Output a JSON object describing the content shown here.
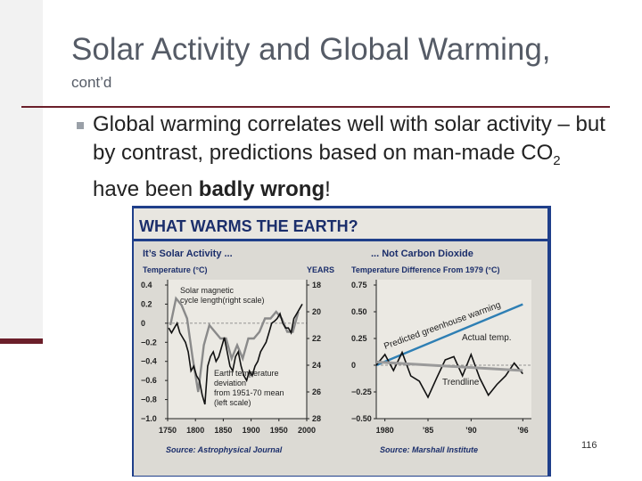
{
  "slide": {
    "title": "Solar Activity and Global Warming,",
    "subtitle": "cont’d",
    "bullet_pre": "Global warming correlates well with solar activity – but by contrast, predictions based on man-made CO",
    "bullet_sub": "2",
    "bullet_mid": " have been ",
    "bullet_bold": "badly wrong",
    "bullet_end": "!",
    "page_number": "116"
  },
  "figure": {
    "headline": "WHAT WARMS THE EARTH?"
  },
  "chart_data": [
    {
      "type": "line",
      "title": "It’s Solar Activity ...",
      "ylabel_left": "Temperature (°C)",
      "ylabel_right": "YEARS",
      "left_ticks": [
        "0.4",
        "0.2",
        "0",
        "−0.2",
        "−0.4",
        "−0.6",
        "−0.8",
        "−1.0"
      ],
      "right_ticks": [
        "18",
        "20",
        "22",
        "24",
        "26",
        "28"
      ],
      "x_ticks": [
        "1750",
        "1800",
        "1850",
        "1900",
        "1950",
        "2000"
      ],
      "xlim": [
        1750,
        2000
      ],
      "ylim_left": [
        -1.0,
        0.4
      ],
      "ylim_right": [
        18,
        28
      ],
      "annotations": [
        "Solar magnetic cycle length (right scale)",
        "Earth temperature deviation from 1951-70 mean (left scale)"
      ],
      "source": "Source: Astrophysical Journal",
      "series": [
        {
          "name": "Solar magnetic cycle length (right scale)",
          "color": "#8a8a8a",
          "x": [
            1755,
            1765,
            1775,
            1785,
            1795,
            1805,
            1815,
            1825,
            1835,
            1845,
            1855,
            1865,
            1875,
            1885,
            1895,
            1905,
            1915,
            1925,
            1935,
            1945,
            1955,
            1965,
            1975,
            1985
          ],
          "y": [
            21.0,
            19.0,
            19.5,
            20.5,
            23.5,
            26.0,
            22.5,
            21.0,
            21.5,
            22.0,
            22.0,
            23.5,
            22.5,
            23.5,
            22.0,
            22.0,
            21.5,
            20.5,
            20.5,
            20.0,
            20.5,
            21.5,
            21.5,
            20.0
          ]
        },
        {
          "name": "Earth temperature deviation from 1951-70 mean (left scale)",
          "color": "#111111",
          "x": [
            1752,
            1757,
            1762,
            1767,
            1772,
            1777,
            1782,
            1787,
            1792,
            1797,
            1802,
            1807,
            1812,
            1817,
            1822,
            1827,
            1832,
            1837,
            1842,
            1847,
            1852,
            1857,
            1862,
            1867,
            1872,
            1877,
            1882,
            1887,
            1892,
            1897,
            1902,
            1907,
            1912,
            1917,
            1922,
            1927,
            1932,
            1937,
            1942,
            1947,
            1952,
            1957,
            1962,
            1967,
            1972,
            1977,
            1982,
            1987,
            1992
          ],
          "y": [
            -0.05,
            -0.1,
            -0.05,
            0.0,
            -0.1,
            -0.15,
            -0.2,
            -0.3,
            -0.5,
            -0.45,
            -0.55,
            -0.6,
            -0.75,
            -0.85,
            -0.45,
            -0.35,
            -0.3,
            -0.4,
            -0.35,
            -0.25,
            -0.15,
            -0.3,
            -0.45,
            -0.5,
            -0.35,
            -0.3,
            -0.45,
            -0.55,
            -0.6,
            -0.5,
            -0.55,
            -0.45,
            -0.4,
            -0.3,
            -0.25,
            -0.2,
            -0.1,
            0.0,
            0.02,
            0.05,
            0.1,
            0.0,
            -0.05,
            -0.05,
            -0.1,
            0.05,
            0.1,
            0.15,
            0.2
          ]
        }
      ]
    },
    {
      "type": "line",
      "title": "... Not Carbon Dioxide",
      "ylabel": "Temperature Difference From 1979 (°C)",
      "y_ticks": [
        "0.75",
        "0.50",
        "0.25",
        "0",
        "−0.25",
        "−0.50"
      ],
      "x_ticks": [
        "1980",
        "’85",
        "’90",
        "’96"
      ],
      "xlim": [
        1979,
        1997
      ],
      "ylim": [
        -0.5,
        0.75
      ],
      "annotations": [
        "Predicted greenhouse warming",
        "Actual temp.",
        "Trendline"
      ],
      "source": "Source: Marshall Institute",
      "series": [
        {
          "name": "Predicted greenhouse warming",
          "color": "#2e7fb4",
          "x": [
            1979,
            1996
          ],
          "y": [
            0.0,
            0.57
          ]
        },
        {
          "name": "Actual temp.",
          "color": "#111111",
          "x": [
            1979,
            1980,
            1981,
            1982,
            1983,
            1984,
            1985,
            1986,
            1987,
            1988,
            1989,
            1990,
            1991,
            1992,
            1993,
            1994,
            1995,
            1996
          ],
          "y": [
            0.0,
            0.1,
            -0.05,
            0.12,
            -0.1,
            -0.15,
            -0.3,
            -0.12,
            0.05,
            0.08,
            -0.1,
            0.1,
            -0.12,
            -0.28,
            -0.18,
            -0.1,
            0.02,
            -0.08
          ]
        },
        {
          "name": "Trendline",
          "color": "#9a9a9a",
          "x": [
            1979,
            1996
          ],
          "y": [
            0.03,
            -0.05
          ]
        }
      ]
    }
  ]
}
